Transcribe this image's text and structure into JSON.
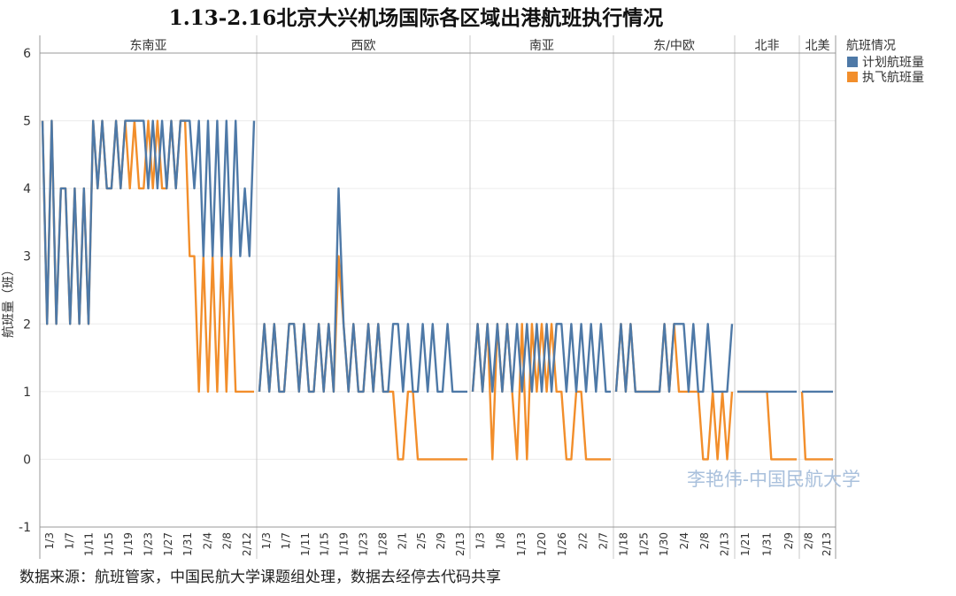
{
  "chart_data": {
    "type": "line",
    "title": "1.13-2.16北京大兴机场国际各区域出港航班执行情况",
    "ylabel": "航班量（班）",
    "ylim": [
      -1,
      6
    ],
    "yticks": [
      6,
      5,
      4,
      3,
      2,
      1,
      0,
      -1
    ],
    "legend_title": "航班情况",
    "legend_position": "top-right",
    "watermark": "李艳伟-中国民航大学",
    "colors": {
      "计划航班量": "#4e79a7",
      "执飞航班量": "#f28e2b"
    },
    "panels": [
      {
        "region": "东南亚",
        "x_ticks": [
          "1/3",
          "1/7",
          "1/11",
          "1/15",
          "1/19",
          "1/23",
          "1/27",
          "1/31",
          "2/4",
          "2/8",
          "2/12"
        ],
        "series": [
          {
            "name": "计划航班量",
            "values": [
              5,
              2,
              5,
              2,
              4,
              4,
              2,
              4,
              2,
              4,
              2,
              5,
              4,
              5,
              4,
              4,
              5,
              4,
              5,
              5,
              5,
              5,
              5,
              4,
              5,
              4,
              5,
              4,
              5,
              4,
              5,
              5,
              5,
              4,
              5,
              3,
              5,
              3,
              5,
              3,
              5,
              3,
              5,
              3,
              4,
              3,
              5
            ]
          },
          {
            "name": "执飞航班量",
            "values": [
              5,
              2,
              5,
              2,
              4,
              4,
              2,
              4,
              2,
              4,
              2,
              5,
              4,
              5,
              4,
              4,
              5,
              4,
              5,
              4,
              5,
              4,
              4,
              5,
              4,
              5,
              4,
              4,
              5,
              4,
              5,
              5,
              3,
              3,
              1,
              3,
              1,
              3,
              1,
              3,
              1,
              3,
              1,
              1,
              1,
              1,
              1
            ]
          }
        ]
      },
      {
        "region": "西欧",
        "x_ticks": [
          "1/3",
          "1/7",
          "1/11",
          "1/15",
          "1/19",
          "1/23",
          "1/28",
          "2/1",
          "2/5",
          "2/9",
          "2/13"
        ],
        "series": [
          {
            "name": "计划航班量",
            "values": [
              1,
              2,
              1,
              2,
              1,
              1,
              2,
              2,
              1,
              2,
              1,
              1,
              2,
              1,
              2,
              1,
              4,
              2,
              1,
              2,
              1,
              1,
              2,
              1,
              2,
              1,
              1,
              2,
              2,
              1,
              2,
              1,
              1,
              2,
              1,
              2,
              1,
              1,
              2,
              1,
              1,
              1,
              1
            ]
          },
          {
            "name": "执飞航班量",
            "values": [
              1,
              2,
              1,
              2,
              1,
              1,
              2,
              2,
              1,
              2,
              1,
              1,
              2,
              1,
              2,
              1,
              3,
              2,
              1,
              2,
              1,
              1,
              2,
              1,
              2,
              1,
              1,
              1,
              0,
              0,
              1,
              1,
              0,
              0,
              0,
              0,
              0,
              0,
              0,
              0,
              0,
              0,
              0
            ]
          }
        ]
      },
      {
        "region": "南亚",
        "x_ticks": [
          "1/3",
          "1/8",
          "1/13",
          "1/20",
          "1/26",
          "2/2",
          "2/7"
        ],
        "series": [
          {
            "name": "计划航班量",
            "values": [
              1,
              2,
              1,
              2,
              1,
              2,
              1,
              2,
              1,
              2,
              1,
              2,
              1,
              2,
              1,
              2,
              1,
              2,
              2,
              1,
              2,
              1,
              2,
              1,
              2,
              1,
              2,
              1,
              1
            ]
          },
          {
            "name": "执飞航班量",
            "values": [
              1,
              2,
              1,
              2,
              0,
              2,
              1,
              2,
              1,
              0,
              2,
              0,
              2,
              1,
              2,
              1,
              2,
              1,
              1,
              0,
              0,
              1,
              1,
              0,
              0,
              0,
              0,
              0,
              0
            ]
          }
        ]
      },
      {
        "region": "东/中欧",
        "x_ticks": [
          "1/18",
          "1/25",
          "1/30",
          "2/4",
          "2/8",
          "2/13"
        ],
        "series": [
          {
            "name": "计划航班量",
            "values": [
              1,
              2,
              1,
              2,
              1,
              1,
              1,
              1,
              1,
              1,
              2,
              1,
              2,
              2,
              2,
              1,
              2,
              1,
              1,
              2,
              1,
              1,
              1,
              1,
              2
            ]
          },
          {
            "name": "执飞航班量",
            "values": [
              1,
              2,
              1,
              2,
              1,
              1,
              1,
              1,
              1,
              1,
              2,
              1,
              2,
              1,
              1,
              1,
              1,
              1,
              0,
              0,
              1,
              0,
              1,
              0,
              1
            ]
          }
        ]
      },
      {
        "region": "北非",
        "x_ticks": [
          "1/21",
          "1/31",
          "2/9"
        ],
        "series": [
          {
            "name": "计划航班量",
            "values": [
              1,
              1,
              1,
              1,
              1,
              1,
              1,
              1,
              1,
              1,
              1,
              1,
              1,
              1,
              1
            ]
          },
          {
            "name": "执飞航班量",
            "values": [
              1,
              1,
              1,
              1,
              1,
              1,
              1,
              1,
              0,
              0,
              0,
              0,
              0,
              0,
              0
            ]
          }
        ]
      },
      {
        "region": "北美",
        "x_ticks": [
          "2/8",
          "2/13"
        ],
        "series": [
          {
            "name": "计划航班量",
            "values": [
              1,
              1,
              1,
              1,
              1,
              1,
              1,
              1,
              1,
              1
            ]
          },
          {
            "name": "执飞航班量",
            "values": [
              1,
              0,
              0,
              0,
              0,
              0,
              0,
              0,
              0,
              0
            ]
          }
        ]
      }
    ]
  },
  "source": "数据来源：航班管家，中国民航大学课题组处理，数据去经停去代码共享"
}
